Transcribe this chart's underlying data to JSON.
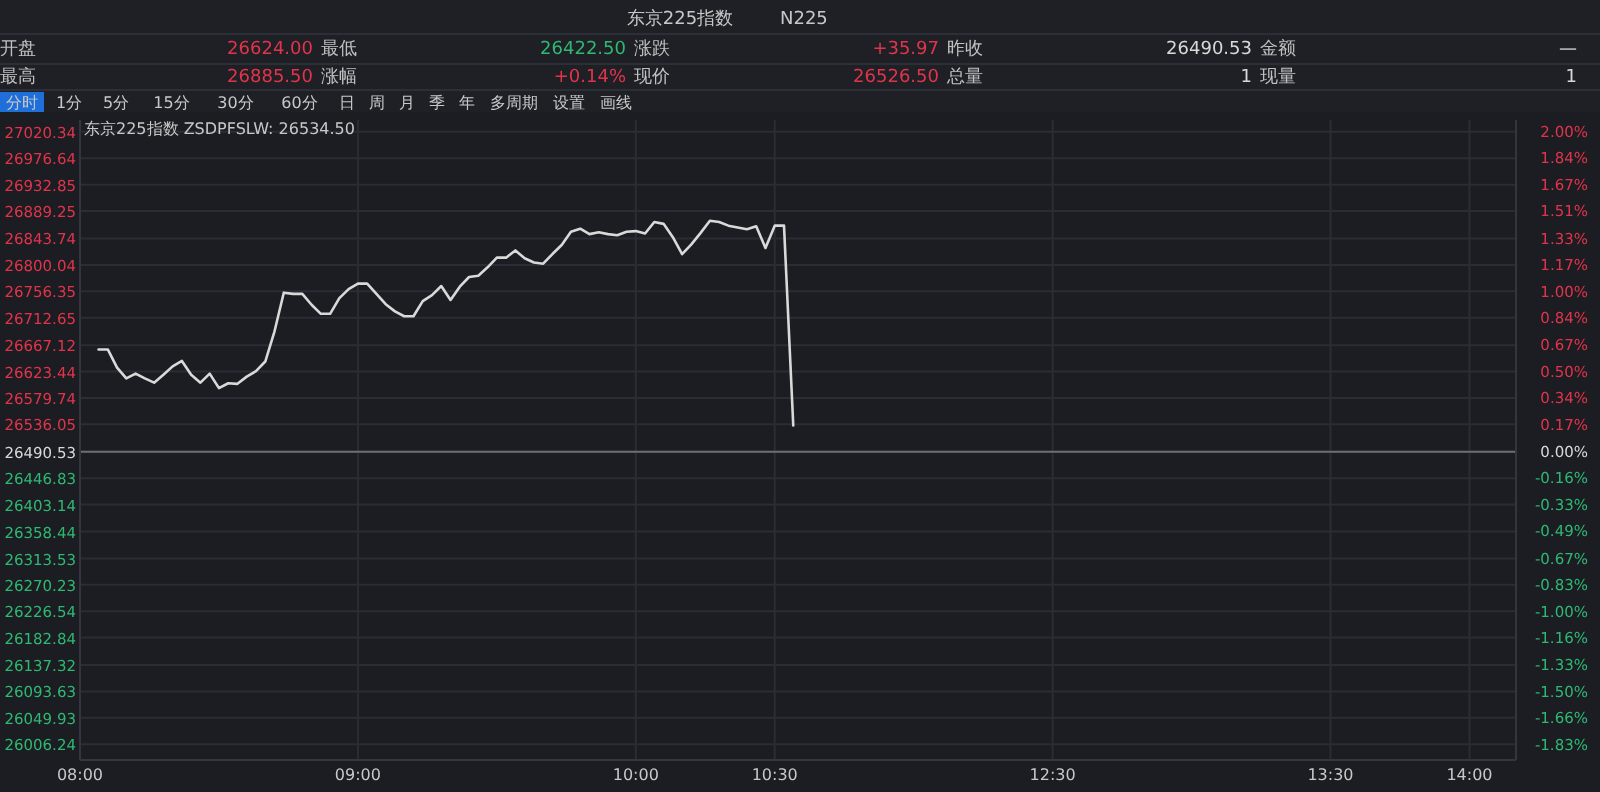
{
  "chart_data": {
    "type": "line",
    "title": "东京225指数",
    "subtitle": "N225",
    "categories": [
      "08:00",
      null,
      null,
      null,
      null,
      null,
      null,
      null,
      null,
      null,
      null,
      null,
      null,
      null,
      null,
      null,
      null,
      null,
      null,
      null,
      null,
      null,
      null,
      null,
      null,
      null,
      null,
      null,
      null,
      null,
      "09:00",
      null,
      null,
      null,
      null,
      null,
      null,
      null,
      null,
      null,
      null,
      null,
      null,
      null,
      null,
      null,
      null,
      null,
      null,
      null,
      null,
      null,
      null,
      null,
      null,
      null,
      null,
      null,
      null,
      null,
      "10:00",
      null,
      null,
      null,
      null,
      null,
      null,
      null,
      null,
      null,
      null,
      null,
      null,
      null,
      null,
      "10:30",
      null,
      null,
      null,
      null,
      null,
      null,
      null,
      null,
      null,
      null,
      null,
      null,
      null,
      null,
      null,
      null,
      null,
      null,
      null,
      null,
      null,
      null,
      null,
      null,
      null,
      null,
      null,
      null,
      null,
      "12:30",
      null,
      null,
      null,
      null,
      null,
      null,
      null,
      null,
      null,
      null,
      null,
      null,
      null,
      null,
      null,
      null,
      null,
      null,
      null,
      null,
      null,
      null,
      null,
      null,
      null,
      null,
      null,
      null,
      null,
      "13:30",
      null,
      null,
      null,
      null,
      null,
      null,
      null,
      null,
      null,
      null,
      null,
      null,
      null,
      null,
      "14:00",
      null,
      null
    ],
    "series": [
      {
        "color": "#d9d9d9",
        "values": [
          null,
          null,
          26660,
          26660,
          26630,
          26612,
          26620,
          26612,
          26605,
          26618,
          26632,
          26641,
          26618,
          26605,
          26620,
          26596,
          26604,
          26603,
          26615,
          26624,
          26640,
          26690,
          26754,
          26752,
          26752,
          26734,
          26719,
          26719,
          26745,
          26760,
          26769,
          26769,
          26752,
          26735,
          26723,
          26715,
          26715,
          26740,
          26750,
          26765,
          26742,
          26764,
          26780,
          26782,
          26796,
          26812,
          26812,
          26824,
          26811,
          26804,
          26802,
          26818,
          26833,
          26855,
          26860,
          26851,
          26854,
          26851,
          26849,
          26855,
          26856,
          26852,
          26871,
          26868,
          26846,
          26818,
          26834,
          26853,
          26873,
          26871,
          26865,
          26862,
          26859,
          26864,
          26828,
          26865,
          26865,
          26534,
          null,
          null,
          null,
          null,
          null,
          null,
          null,
          null,
          null,
          null,
          null,
          null,
          null,
          null,
          null,
          null,
          null,
          null,
          null,
          null,
          null,
          null,
          null,
          null,
          null,
          null,
          null,
          null,
          null,
          null,
          null,
          null,
          null,
          null,
          null,
          null,
          null,
          null,
          null,
          null,
          null,
          null,
          null,
          null,
          null,
          null,
          null,
          null,
          null,
          null,
          null,
          null,
          null,
          null,
          null,
          null,
          null,
          null,
          null,
          null,
          null,
          null,
          null,
          null,
          null,
          null,
          null,
          null,
          null,
          null,
          null,
          null,
          null,
          null,
          null
        ]
      }
    ],
    "ylim": [
      25980,
      27040
    ],
    "yticks": [
      27020.34,
      26976.64,
      26932.85,
      26889.25,
      26843.74,
      26800.04,
      26756.35,
      26712.65,
      26667.12,
      26623.44,
      26579.74,
      26536.05,
      26490.53,
      26446.83,
      26403.14,
      26358.44,
      26313.53,
      26270.23,
      26226.54,
      26182.84,
      26137.32,
      26093.63,
      26049.93,
      26006.24
    ],
    "y2lim": [
      -1.93,
      2.07
    ],
    "y2ticks": [
      {
        "value": 2,
        "label": "2.00%"
      },
      {
        "value": 1.84,
        "label": "1.84%"
      },
      {
        "value": 1.67,
        "label": "1.67%"
      },
      {
        "value": 1.51,
        "label": "1.51%"
      },
      {
        "value": 1.33,
        "label": "1.33%"
      },
      {
        "value": 1.17,
        "label": "1.17%"
      },
      {
        "value": 1,
        "label": "1.00%"
      },
      {
        "value": 0.84,
        "label": "0.84%"
      },
      {
        "value": 0.67,
        "label": "0.67%"
      },
      {
        "value": 0.5,
        "label": "0.50%"
      },
      {
        "value": 0.34,
        "label": "0.34%"
      },
      {
        "value": 0.17,
        "label": "0.17%"
      },
      {
        "value": 0,
        "label": "0.00%"
      },
      {
        "value": -0.16,
        "label": "-0.16%"
      },
      {
        "value": -0.33,
        "label": "-0.33%"
      },
      {
        "value": -0.49,
        "label": "-0.49%"
      },
      {
        "value": -0.67,
        "label": "-0.67%"
      },
      {
        "value": -0.83,
        "label": "-0.83%"
      },
      {
        "value": -1,
        "label": "-1.00%"
      },
      {
        "value": -1.16,
        "label": "-1.16%"
      },
      {
        "value": -1.33,
        "label": "-1.33%"
      },
      {
        "value": -1.5,
        "label": "-1.50%"
      },
      {
        "value": -1.66,
        "label": "-1.66%"
      },
      {
        "value": -1.83,
        "label": "-1.83%"
      }
    ],
    "ref_lines": [
      {
        "axis": "y",
        "value": 26490.53,
        "color": "#6b6e75"
      }
    ],
    "grid": true,
    "annotations": [
      "开盘",
      "26624.00",
      "最低",
      "26422.50",
      "涨跌",
      "+35.97",
      "昨收",
      "26490.53",
      "金额",
      "—",
      "最高",
      "26885.50",
      "涨幅",
      "+0.14%",
      "现价",
      "26526.50",
      "总量",
      "1",
      "现量",
      "1",
      "分时",
      "1分",
      "5分",
      "15分",
      "30分",
      "60分",
      "日",
      "周",
      "月",
      "季",
      "年",
      "多周期",
      "设置",
      "画线",
      "东京225指数 ZSDPFSLW: 26534.50"
    ]
  }
}
